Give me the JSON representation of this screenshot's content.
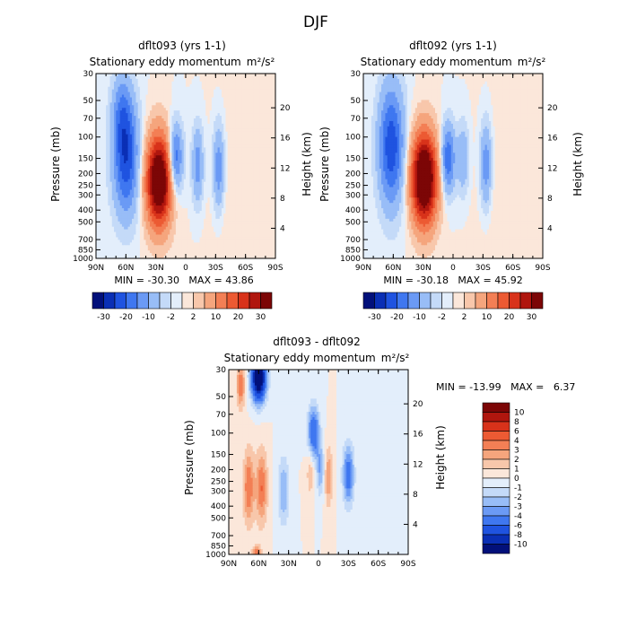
{
  "figure_title": "DJF",
  "colors": {
    "neg": [
      "#02107a",
      "#0a2fb5",
      "#1f53e0",
      "#3f77f0",
      "#6b9af5",
      "#98bdf7",
      "#c4daf8",
      "#e3eefb"
    ],
    "pos": [
      "#fbe7da",
      "#f8c7ab",
      "#f5a57d",
      "#f37f55",
      "#ec5a33",
      "#d8321a",
      "#b0160e",
      "#7c0606"
    ]
  },
  "chart_data": [
    {
      "id": "p1",
      "type": "heatmap",
      "title": "dflt093 (yrs 1-1)",
      "subtitle": "Stationary eddy momentum",
      "units": "m²/s²",
      "xlabel": "",
      "ylabel": "Pressure (mb)",
      "ylabel_right": "Height (km)",
      "x_ticks": [
        "90N",
        "60N",
        "30N",
        "0",
        "30S",
        "60S",
        "90S"
      ],
      "x_range": [
        90,
        -90
      ],
      "pressure_ticks": [
        30,
        50,
        70,
        100,
        150,
        200,
        250,
        300,
        400,
        500,
        700,
        850,
        1000
      ],
      "height_ticks": [
        4,
        8,
        12,
        16,
        20
      ],
      "stats": "MIN = -30.30   MAX = 43.86",
      "min": -30.3,
      "max": 43.86,
      "levels": [
        -30,
        -25,
        -20,
        -15,
        -10,
        -5,
        -2,
        0,
        2,
        5,
        10,
        15,
        20,
        25,
        30
      ],
      "colorbar_labels": [
        "-30",
        "-20",
        "-10",
        "-2",
        "2",
        "10",
        "20",
        "30"
      ],
      "features": [
        {
          "lat": 60,
          "p": 150,
          "amp": -24,
          "slat": 9,
          "sp": 0.75
        },
        {
          "lat": 64,
          "p": 60,
          "amp": -10,
          "slat": 7,
          "sp": 0.5
        },
        {
          "lat": 27,
          "p": 230,
          "amp": 42,
          "slat": 9,
          "sp": 0.6
        },
        {
          "lat": 10,
          "p": 150,
          "amp": -20,
          "slat": 5,
          "sp": 0.45
        },
        {
          "lat": -12,
          "p": 170,
          "amp": -13,
          "slat": 4,
          "sp": 0.5
        },
        {
          "lat": -33,
          "p": 180,
          "amp": -14,
          "slat": 4,
          "sp": 0.55
        },
        {
          "lat": -60,
          "p": 350,
          "amp": 2,
          "slat": 22,
          "sp": 1.4
        }
      ]
    },
    {
      "id": "p2",
      "type": "heatmap",
      "title": "dflt092 (yrs 1-1)",
      "subtitle": "Stationary eddy momentum",
      "units": "m²/s²",
      "xlabel": "",
      "ylabel": "Pressure (mb)",
      "ylabel_right": "Height (km)",
      "x_ticks": [
        "90N",
        "60N",
        "30N",
        "0",
        "30S",
        "60S",
        "90S"
      ],
      "x_range": [
        90,
        -90
      ],
      "pressure_ticks": [
        30,
        50,
        70,
        100,
        150,
        200,
        250,
        300,
        400,
        500,
        700,
        850,
        1000
      ],
      "height_ticks": [
        4,
        8,
        12,
        16,
        20
      ],
      "stats": "MIN = -30.18   MAX = 45.92",
      "min": -30.18,
      "max": 45.92,
      "levels": [
        -30,
        -25,
        -20,
        -15,
        -10,
        -5,
        -2,
        0,
        2,
        5,
        10,
        15,
        20,
        25,
        30
      ],
      "colorbar_labels": [
        "-30",
        "-20",
        "-10",
        "-2",
        "2",
        "10",
        "20",
        "30"
      ],
      "features": [
        {
          "lat": 62,
          "p": 120,
          "amp": -24,
          "slat": 9,
          "sp": 0.8
        },
        {
          "lat": 29,
          "p": 220,
          "amp": 45,
          "slat": 9,
          "sp": 0.6
        },
        {
          "lat": 5,
          "p": 150,
          "amp": -20,
          "slat": 5,
          "sp": 0.45
        },
        {
          "lat": -10,
          "p": 150,
          "amp": -10,
          "slat": 4,
          "sp": 0.45
        },
        {
          "lat": -33,
          "p": 170,
          "amp": -14,
          "slat": 4,
          "sp": 0.55
        },
        {
          "lat": -60,
          "p": 350,
          "amp": 2,
          "slat": 22,
          "sp": 1.4
        }
      ]
    },
    {
      "id": "p3",
      "type": "heatmap",
      "title": "dflt093 - dflt092",
      "subtitle": "Stationary eddy momentum",
      "units": "m²/s²",
      "xlabel": "",
      "ylabel": "Pressure (mb)",
      "ylabel_right": "Height (km)",
      "x_ticks": [
        "90N",
        "60N",
        "30N",
        "0",
        "30S",
        "60S",
        "90S"
      ],
      "x_range": [
        90,
        -90
      ],
      "pressure_ticks": [
        30,
        50,
        70,
        100,
        150,
        200,
        250,
        300,
        400,
        500,
        700,
        850,
        1000
      ],
      "height_ticks": [
        4,
        8,
        12,
        16,
        20
      ],
      "stats": "MIN = -13.99   MAX =   6.37",
      "min": -13.99,
      "max": 6.37,
      "levels": [
        -10,
        -8,
        -6,
        -4,
        -3,
        -2,
        -1,
        0,
        1,
        2,
        3,
        4,
        6,
        8,
        10
      ],
      "colorbar_labels": [
        "10",
        "8",
        "6",
        "4",
        "3",
        "2",
        "1",
        "0",
        "-1",
        "-2",
        "-3",
        "-4",
        "-6",
        "-8",
        "-10"
      ],
      "features": [
        {
          "lat": 60,
          "p": 35,
          "amp": -14,
          "slat": 5,
          "sp": 0.3
        },
        {
          "lat": 78,
          "p": 40,
          "amp": 4,
          "slat": 3,
          "sp": 0.3
        },
        {
          "lat": 70,
          "p": 280,
          "amp": 4,
          "slat": 4,
          "sp": 0.5
        },
        {
          "lat": 57,
          "p": 280,
          "amp": 4,
          "slat": 4,
          "sp": 0.5
        },
        {
          "lat": 35,
          "p": 300,
          "amp": -3,
          "slat": 4,
          "sp": 0.45
        },
        {
          "lat": 5,
          "p": 100,
          "amp": -6,
          "slat": 4,
          "sp": 0.35
        },
        {
          "lat": -30,
          "p": 220,
          "amp": -5,
          "slat": 4,
          "sp": 0.4
        },
        {
          "lat": -10,
          "p": 230,
          "amp": 3,
          "slat": 3,
          "sp": 0.4
        },
        {
          "lat": -2,
          "p": 200,
          "amp": -3,
          "slat": 3,
          "sp": 0.35
        },
        {
          "lat": 8,
          "p": 200,
          "amp": 2,
          "slat": 3,
          "sp": 0.35
        },
        {
          "lat": 62,
          "p": 980,
          "amp": 4,
          "slat": 3,
          "sp": 0.1
        }
      ]
    }
  ]
}
